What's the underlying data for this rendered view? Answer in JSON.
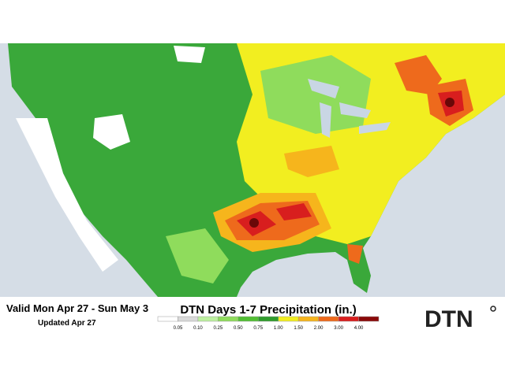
{
  "header": {
    "valid": "Valid Mon Apr 27 - Sun May 3",
    "updated": "Updated Apr 27",
    "title": "DTN Days 1-7 Precipitation (in.)",
    "logo": "DTN"
  },
  "legend": {
    "ticks": [
      {
        "value": 0.05,
        "label": "0.05"
      },
      {
        "value": 0.1,
        "label": "0.10"
      },
      {
        "value": 0.25,
        "label": "0.25"
      },
      {
        "value": 0.5,
        "label": "0.50"
      },
      {
        "value": 0.75,
        "label": "0.75"
      },
      {
        "value": 1,
        "label": "1.00"
      },
      {
        "value": 1.5,
        "label": "1.50"
      },
      {
        "value": 2,
        "label": "2.00"
      },
      {
        "value": 3,
        "label": "3.00"
      },
      {
        "value": 4,
        "label": "4.00"
      }
    ],
    "colors": [
      "#ffffff",
      "#d9d9d9",
      "#bdf0a0",
      "#8fdc5c",
      "#52bf34",
      "#2f9c2c",
      "#f2ee20",
      "#f6b51c",
      "#ee6a1c",
      "#d81e1e",
      "#8a0a0a"
    ]
  }
}
